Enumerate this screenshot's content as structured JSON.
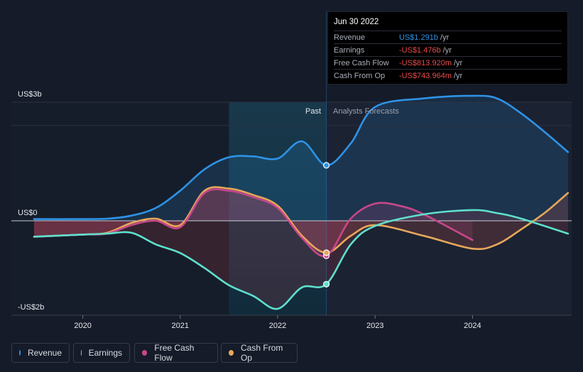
{
  "tooltip": {
    "date": "Jun 30 2022",
    "rows": [
      {
        "label": "Revenue",
        "value": "US$1.291b",
        "unit": "/yr",
        "color": "#2e93e6"
      },
      {
        "label": "Earnings",
        "value": "-US$1.476b",
        "unit": "/yr",
        "color": "#e84a4a"
      },
      {
        "label": "Free Cash Flow",
        "value": "-US$813.920m",
        "unit": "/yr",
        "color": "#e84a4a"
      },
      {
        "label": "Cash From Op",
        "value": "-US$743.964m",
        "unit": "/yr",
        "color": "#e84a4a"
      }
    ]
  },
  "regions": {
    "past": "Past",
    "forecast": "Analysts Forecasts"
  },
  "legend": [
    {
      "label": "Revenue",
      "color": "#2e93e6"
    },
    {
      "label": "Earnings",
      "color": "#5ee0cc"
    },
    {
      "label": "Free Cash Flow",
      "color": "#c8478a"
    },
    {
      "label": "Cash From Op",
      "color": "#e6a75a"
    }
  ],
  "chart_data": {
    "type": "line",
    "y_tick_labels": [
      "US$3b",
      "US$0",
      "-US$2b"
    ],
    "x_tick_labels": [
      "2020",
      "2021",
      "2022",
      "2023",
      "2024"
    ],
    "ylim": [
      -2,
      3
    ],
    "x_range": [
      2019.5,
      2024.98
    ],
    "divider_x": 2022.5,
    "highlight_range": [
      2021.5,
      2022.5
    ],
    "series": [
      {
        "name": "Revenue",
        "color": "#2e93e6",
        "points": [
          [
            2019.5,
            0.04
          ],
          [
            2020.0,
            0.04
          ],
          [
            2020.25,
            0.05
          ],
          [
            2020.5,
            0.12
          ],
          [
            2020.75,
            0.3
          ],
          [
            2021.0,
            0.7
          ],
          [
            2021.25,
            1.2
          ],
          [
            2021.5,
            1.48
          ],
          [
            2021.75,
            1.5
          ],
          [
            2022.0,
            1.45
          ],
          [
            2022.25,
            1.85
          ],
          [
            2022.5,
            1.291
          ],
          [
            2022.75,
            1.8
          ],
          [
            2023.0,
            2.65
          ],
          [
            2023.5,
            2.85
          ],
          [
            2024.0,
            2.91
          ],
          [
            2024.25,
            2.85
          ],
          [
            2024.5,
            2.5
          ],
          [
            2024.75,
            2.05
          ],
          [
            2024.98,
            1.6
          ]
        ]
      },
      {
        "name": "Earnings",
        "color": "#5ee0cc",
        "points": [
          [
            2019.5,
            -0.37
          ],
          [
            2020.0,
            -0.32
          ],
          [
            2020.25,
            -0.3
          ],
          [
            2020.5,
            -0.28
          ],
          [
            2020.75,
            -0.55
          ],
          [
            2021.0,
            -0.75
          ],
          [
            2021.25,
            -1.1
          ],
          [
            2021.5,
            -1.5
          ],
          [
            2021.75,
            -1.75
          ],
          [
            2022.0,
            -2.05
          ],
          [
            2022.25,
            -1.55
          ],
          [
            2022.5,
            -1.476
          ],
          [
            2022.75,
            -0.55
          ],
          [
            2023.0,
            -0.12
          ],
          [
            2023.5,
            0.15
          ],
          [
            2024.0,
            0.25
          ],
          [
            2024.25,
            0.18
          ],
          [
            2024.5,
            0.05
          ],
          [
            2024.98,
            -0.3
          ]
        ]
      },
      {
        "name": "Free Cash Flow",
        "color": "#c8478a",
        "points": [
          [
            2019.5,
            -0.37
          ],
          [
            2020.0,
            -0.32
          ],
          [
            2020.25,
            -0.3
          ],
          [
            2020.5,
            -0.1
          ],
          [
            2020.75,
            0.0
          ],
          [
            2021.0,
            -0.15
          ],
          [
            2021.25,
            0.65
          ],
          [
            2021.5,
            0.7
          ],
          [
            2021.75,
            0.55
          ],
          [
            2022.0,
            0.3
          ],
          [
            2022.25,
            -0.4
          ],
          [
            2022.5,
            -0.814
          ],
          [
            2022.75,
            0.05
          ],
          [
            2023.0,
            0.4
          ],
          [
            2023.25,
            0.35
          ],
          [
            2023.5,
            0.15
          ],
          [
            2024.0,
            -0.45
          ]
        ]
      },
      {
        "name": "Cash From Op",
        "color": "#e6a75a",
        "points": [
          [
            2019.5,
            -0.37
          ],
          [
            2020.0,
            -0.32
          ],
          [
            2020.25,
            -0.28
          ],
          [
            2020.5,
            -0.05
          ],
          [
            2020.75,
            0.05
          ],
          [
            2021.0,
            -0.1
          ],
          [
            2021.25,
            0.7
          ],
          [
            2021.5,
            0.75
          ],
          [
            2021.75,
            0.6
          ],
          [
            2022.0,
            0.35
          ],
          [
            2022.25,
            -0.35
          ],
          [
            2022.5,
            -0.744
          ],
          [
            2022.75,
            -0.35
          ],
          [
            2023.0,
            -0.1
          ],
          [
            2023.5,
            -0.35
          ],
          [
            2024.0,
            -0.65
          ],
          [
            2024.25,
            -0.55
          ],
          [
            2024.5,
            -0.2
          ],
          [
            2024.75,
            0.2
          ],
          [
            2024.98,
            0.65
          ]
        ]
      }
    ]
  }
}
